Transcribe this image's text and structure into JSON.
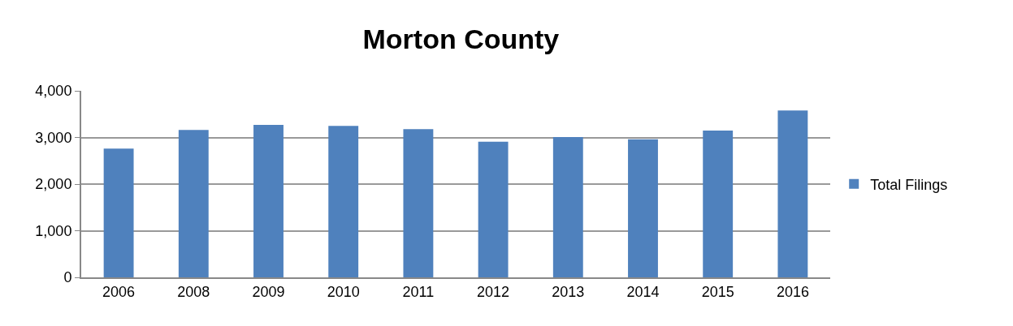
{
  "chart_data": {
    "type": "bar",
    "title": "Morton County",
    "categories": [
      "2006",
      "2008",
      "2009",
      "2010",
      "2011",
      "2012",
      "2013",
      "2014",
      "2015",
      "2016"
    ],
    "series": [
      {
        "name": "Total Filings",
        "color": "#4f81bd",
        "values": [
          2760,
          3160,
          3270,
          3250,
          3180,
          2910,
          3010,
          2960,
          3150,
          3580
        ]
      }
    ],
    "ylim": [
      0,
      4000
    ],
    "yticks": [
      {
        "value": 0,
        "label": "0"
      },
      {
        "value": 1000,
        "label": "1,000"
      },
      {
        "value": 2000,
        "label": "2,000"
      },
      {
        "value": 3000,
        "label": "3,000"
      },
      {
        "value": 4000,
        "label": "4,000"
      }
    ],
    "grid": "y",
    "legend": "right"
  }
}
